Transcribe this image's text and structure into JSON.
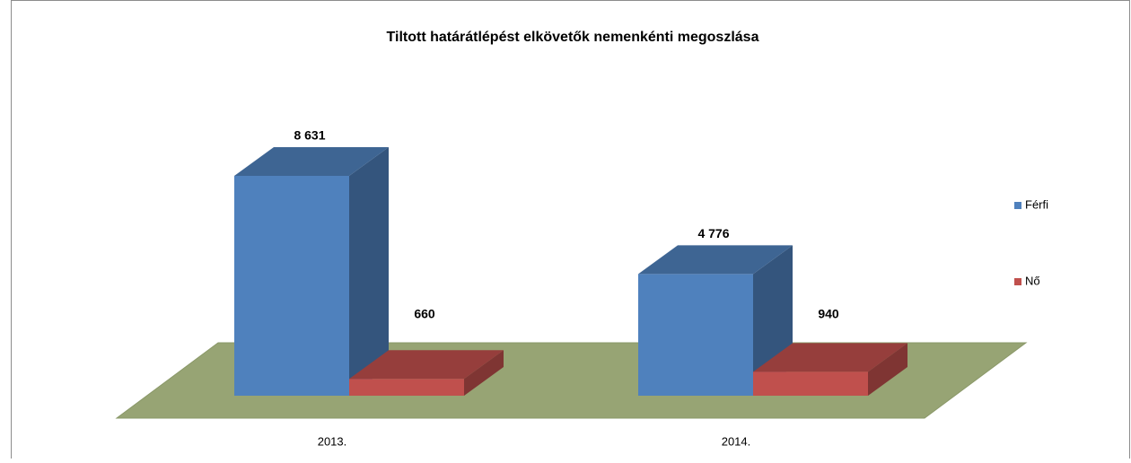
{
  "chart_data": {
    "type": "bar3d",
    "title": "Tiltott határátlépést elkövetők nemenkénti megoszlása",
    "categories": [
      "2013.",
      "2014."
    ],
    "series": [
      {
        "name": "Férfi",
        "color": "#4f81bd",
        "values": [
          8631,
          4776
        ],
        "value_labels": [
          "8 631",
          "4 776"
        ]
      },
      {
        "name": "Nő",
        "color": "#c0504d",
        "values": [
          660,
          940
        ]
      }
    ],
    "legend": "right"
  }
}
